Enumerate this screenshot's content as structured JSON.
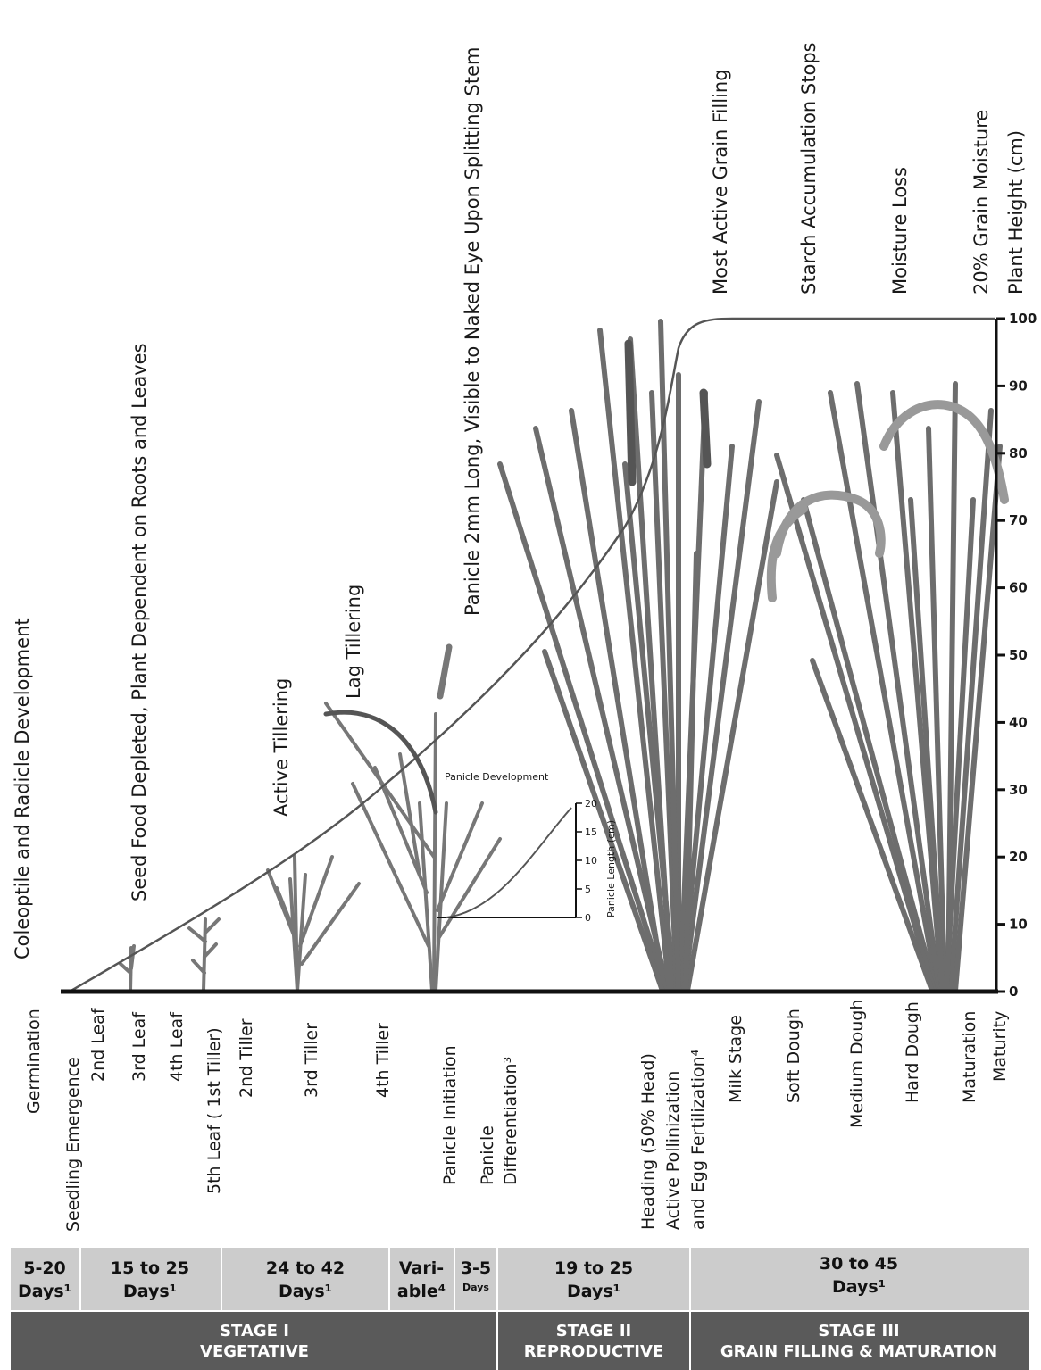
{
  "top_labels": [
    {
      "id": "coleoptile",
      "text": "Coleoptile and Radicle Development"
    },
    {
      "id": "seed-food",
      "text": "Seed Food Depleted, Plant Dependent on Roots and Leaves"
    },
    {
      "id": "active-tillering",
      "text": "Active Tillering"
    },
    {
      "id": "lag-tillering",
      "text": "Lag Tillering"
    },
    {
      "id": "panicle-2mm",
      "text": "Panicle 2mm Long, Visible to Naked Eye Upon Splitting Stem"
    },
    {
      "id": "most-active",
      "text": "Most Active Grain Filling"
    },
    {
      "id": "starch",
      "text": "Starch Accumulation Stops"
    },
    {
      "id": "moisture-loss",
      "text": "Moisture Loss"
    },
    {
      "id": "grain-moisture",
      "text": "20% Grain Moisture"
    },
    {
      "id": "plant-height",
      "text": "Plant Height (cm)"
    }
  ],
  "bottom_labels": [
    {
      "id": "germination",
      "text": "Germination"
    },
    {
      "id": "seedling",
      "text": "Seedling Emergence"
    },
    {
      "id": "leaf2",
      "text": "2nd Leaf"
    },
    {
      "id": "leaf3",
      "text": "3rd Leaf"
    },
    {
      "id": "leaf4",
      "text": "4th Leaf"
    },
    {
      "id": "leaf5",
      "text": "5th Leaf ( 1st Tiller)"
    },
    {
      "id": "tiller2",
      "text": "2nd Tiller"
    },
    {
      "id": "tiller3",
      "text": "3rd Tiller"
    },
    {
      "id": "tiller4",
      "text": "4th Tiller"
    },
    {
      "id": "panicle-init",
      "text": "Panicle Initiation"
    },
    {
      "id": "panicle-diff1",
      "text": "Panicle"
    },
    {
      "id": "panicle-diff2",
      "text": "Differentiation³"
    },
    {
      "id": "heading",
      "text": "Heading (50% Head)"
    },
    {
      "id": "pollination1",
      "text": "Active Pollinization"
    },
    {
      "id": "pollination2",
      "text": "and Egg Fertilization⁴"
    },
    {
      "id": "milk",
      "text": "Milk Stage"
    },
    {
      "id": "soft-dough",
      "text": "Soft Dough"
    },
    {
      "id": "medium-dough",
      "text": "Medium Dough"
    },
    {
      "id": "hard-dough",
      "text": "Hard Dough"
    },
    {
      "id": "maturation",
      "text": "Maturation"
    },
    {
      "id": "maturity",
      "text": "Maturity"
    }
  ],
  "axis": {
    "ticks": [
      "0",
      "10",
      "20",
      "30",
      "40",
      "50",
      "60",
      "70",
      "80",
      "90",
      "100"
    ]
  },
  "inset": {
    "title": "Panicle Development",
    "ylabel": "Panicle Length (cm)",
    "ticks": [
      "0",
      "5",
      "10",
      "15",
      "20"
    ]
  },
  "durations": [
    {
      "line1": "5-20",
      "line2": "Days¹"
    },
    {
      "line1": "15 to 25",
      "line2": "Days¹"
    },
    {
      "line1": "24 to 42",
      "line2": "Days¹"
    },
    {
      "line1": "Vari-",
      "line2": "able⁴"
    },
    {
      "line1": "3-5",
      "line2": "Days"
    },
    {
      "line1": "19 to 25",
      "line2": "Days¹"
    },
    {
      "line1": "30 to 45",
      "line2": "Days¹"
    }
  ],
  "stages": [
    {
      "line1": "STAGE I",
      "line2": "VEGETATIVE"
    },
    {
      "line1": "STAGE II",
      "line2": "REPRODUCTIVE"
    },
    {
      "line1": "STAGE III",
      "line2": "GRAIN FILLING & MATURATION"
    }
  ],
  "colors": {
    "duration_bg": "#cccccc",
    "stage_bg": "#5a5a5a",
    "plant": "#7a7a7a",
    "plant_dark": "#4d4d4d",
    "curve": "#555555"
  }
}
